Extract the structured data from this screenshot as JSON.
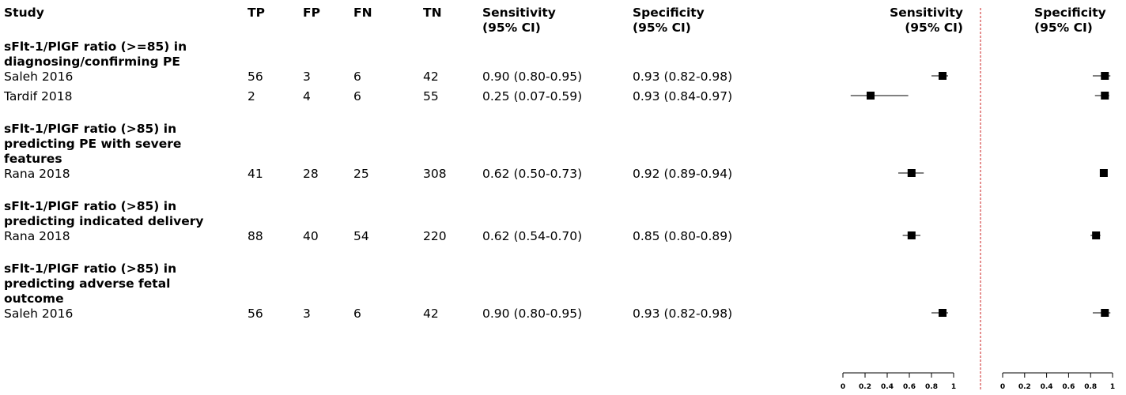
{
  "headers": {
    "study": "Study",
    "tp": "TP",
    "fp": "FP",
    "fn": "FN",
    "tn": "TN",
    "sensitivity": [
      "Sensitivity",
      "(95% CI)"
    ],
    "specificity": [
      "Specificity",
      "(95% CI)"
    ],
    "plot_sensitivity": [
      "Sensitivity",
      "(95% CI)"
    ],
    "plot_specificity": [
      "Specificity",
      "(95% CI)"
    ]
  },
  "chart_data": {
    "type": "forest",
    "axis_ticks": [
      "0",
      "0.2",
      "0.4",
      "0.6",
      "0.8",
      "1"
    ],
    "xlim": [
      0,
      1
    ],
    "groups": [
      {
        "label": [
          "sFlt-1/PlGF ratio (>=85) in",
          "diagnosing/confirming PE"
        ],
        "studies": [
          {
            "study": "Saleh 2016",
            "tp": "56",
            "fp": "3",
            "fn": "6",
            "tn": "42",
            "sens_text": "0.90 (0.80-0.95)",
            "spec_text": "0.93 (0.82-0.98)",
            "sens": 0.9,
            "sens_lo": 0.8,
            "sens_hi": 0.95,
            "spec": 0.93,
            "spec_lo": 0.82,
            "spec_hi": 0.98
          },
          {
            "study": "Tardif 2018",
            "tp": "2",
            "fp": "4",
            "fn": "6",
            "tn": "55",
            "sens_text": "0.25 (0.07-0.59)",
            "spec_text": "0.93 (0.84-0.97)",
            "sens": 0.25,
            "sens_lo": 0.07,
            "sens_hi": 0.59,
            "spec": 0.93,
            "spec_lo": 0.84,
            "spec_hi": 0.97
          }
        ]
      },
      {
        "label": [
          "sFlt-1/PlGF ratio (>85) in",
          "predicting PE with severe",
          "features"
        ],
        "studies": [
          {
            "study": "Rana 2018",
            "tp": "41",
            "fp": "28",
            "fn": "25",
            "tn": "308",
            "sens_text": "0.62 (0.50-0.73)",
            "spec_text": "0.92 (0.89-0.94)",
            "sens": 0.62,
            "sens_lo": 0.5,
            "sens_hi": 0.73,
            "spec": 0.92,
            "spec_lo": 0.89,
            "spec_hi": 0.94
          }
        ]
      },
      {
        "label": [
          "sFlt-1/PlGF ratio (>85) in",
          "predicting indicated delivery"
        ],
        "studies": [
          {
            "study": "Rana 2018",
            "tp": "88",
            "fp": "40",
            "fn": "54",
            "tn": "220",
            "sens_text": "0.62 (0.54-0.70)",
            "spec_text": "0.85 (0.80-0.89)",
            "sens": 0.62,
            "sens_lo": 0.54,
            "sens_hi": 0.7,
            "spec": 0.85,
            "spec_lo": 0.8,
            "spec_hi": 0.89
          }
        ]
      },
      {
        "label": [
          "sFlt-1/PlGF ratio (>85) in",
          "predicting adverse fetal",
          "outcome"
        ],
        "studies": [
          {
            "study": "Saleh 2016",
            "tp": "56",
            "fp": "3",
            "fn": "6",
            "tn": "42",
            "sens_text": "0.90 (0.80-0.95)",
            "spec_text": "0.93 (0.82-0.98)",
            "sens": 0.9,
            "sens_lo": 0.8,
            "sens_hi": 0.95,
            "spec": 0.93,
            "spec_lo": 0.82,
            "spec_hi": 0.98
          }
        ]
      }
    ]
  },
  "colors": {
    "text": "#000000",
    "divider": "#cc2222"
  }
}
